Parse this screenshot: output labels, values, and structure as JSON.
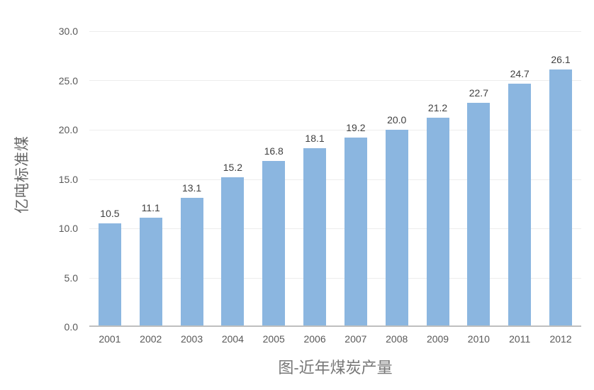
{
  "chart_data": {
    "type": "bar",
    "title": "图-近年煤炭产量",
    "ylabel": "亿吨标准煤",
    "xlabel": "",
    "categories": [
      "2001",
      "2002",
      "2003",
      "2004",
      "2005",
      "2006",
      "2007",
      "2008",
      "2009",
      "2010",
      "2011",
      "2012"
    ],
    "values": [
      10.5,
      11.1,
      13.1,
      15.2,
      16.8,
      18.1,
      19.2,
      20.0,
      21.2,
      22.7,
      24.7,
      26.1
    ],
    "value_labels": [
      "10.5",
      "11.1",
      "13.1",
      "15.2",
      "16.8",
      "18.1",
      "19.2",
      "20.0",
      "21.2",
      "22.7",
      "24.7",
      "26.1"
    ],
    "ylim": [
      0,
      30
    ],
    "ytick_step": 5,
    "ytick_labels": [
      "0.0",
      "5.0",
      "10.0",
      "15.0",
      "20.0",
      "25.0",
      "30.0"
    ],
    "grid": true,
    "legend_position": "none",
    "colors": {
      "bar_fill": "#8bb6e0",
      "gridline": "#ededed",
      "axis_line": "#bfbfbf",
      "tick_label": "#595959",
      "value_label": "#404040",
      "axis_title": "#666666",
      "chart_title": "#777777"
    }
  }
}
